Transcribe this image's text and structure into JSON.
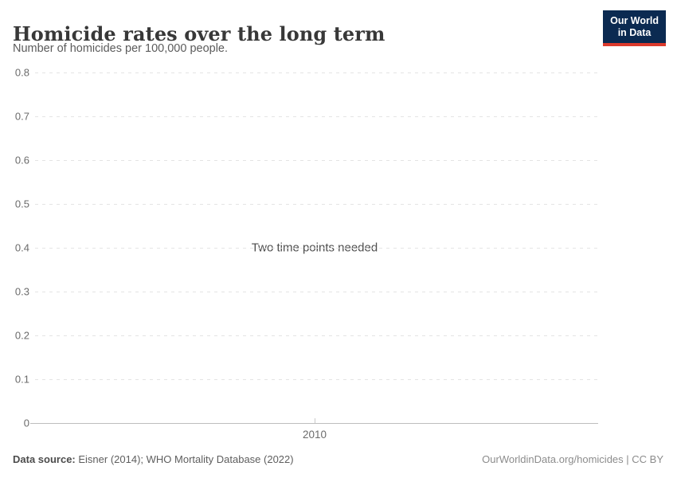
{
  "header": {
    "title": "Homicide rates over the long term",
    "subtitle": "Number of homicides per 100,000 people.",
    "logo": {
      "line1": "Our World",
      "line2": "in Data"
    }
  },
  "chart_data": {
    "type": "line",
    "title": "Homicide rates over the long term",
    "subtitle": "Number of homicides per 100,000 people.",
    "series": [],
    "message": "Two time points needed",
    "x_ticks": [
      "2010"
    ],
    "y_ticks": [
      "0.8",
      "0.7",
      "0.6",
      "0.5",
      "0.4",
      "0.3",
      "0.2",
      "0.1",
      "0"
    ],
    "ylim": [
      0,
      0.8
    ],
    "xlabel": "",
    "ylabel": "Number of homicides per 100,000 people",
    "grid": true,
    "legend_position": "none"
  },
  "footer": {
    "datasource_label": "Data source:",
    "datasource_value": "Eisner (2014); WHO Mortality Database (2022)",
    "link": "OurWorldinData.org/homicides | CC BY"
  },
  "colors": {
    "logo_background": "#0b2a51",
    "logo_accent_red": "#dc3a2c",
    "gridline": "#e4e4e4",
    "axis_line": "#bdbdbd",
    "title_text": "#383838",
    "muted_text": "#6b6b6b"
  }
}
